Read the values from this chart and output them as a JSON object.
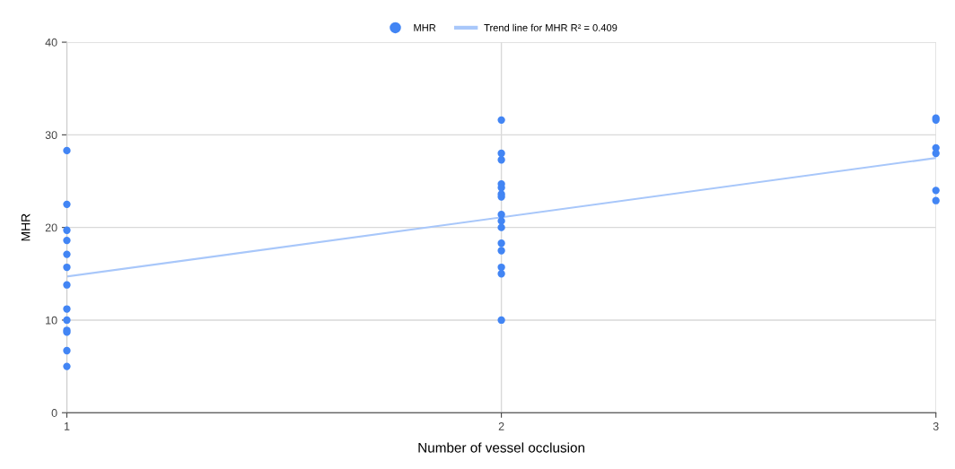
{
  "chart_data": {
    "type": "scatter",
    "xlabel": "Number of vessel occlusion",
    "ylabel": "MHR",
    "xlim": [
      1,
      3
    ],
    "xticks": [
      1,
      2,
      3
    ],
    "ylim": [
      0,
      40
    ],
    "yticks": [
      0,
      10,
      20,
      30,
      40
    ],
    "grid": true,
    "legend": "top",
    "series": [
      {
        "name": "MHR",
        "marker": "circle",
        "color": "#4285f4",
        "x": [
          1,
          1,
          1,
          1,
          1,
          1,
          1,
          1,
          1,
          1,
          1,
          1,
          1,
          2,
          2,
          2,
          2,
          2,
          2,
          2,
          2,
          2,
          2,
          2,
          2,
          2,
          2,
          2,
          3,
          3,
          3,
          3,
          3,
          3
        ],
        "values": [
          28.3,
          22.5,
          19.7,
          18.6,
          17.1,
          15.7,
          13.8,
          11.2,
          10.0,
          8.9,
          8.7,
          6.7,
          5.0,
          31.6,
          28.0,
          27.3,
          24.7,
          24.3,
          23.6,
          23.3,
          21.4,
          20.7,
          20.0,
          18.3,
          17.5,
          15.7,
          15.0,
          10.0,
          31.8,
          31.6,
          28.6,
          28.0,
          24.0,
          22.9
        ]
      },
      {
        "name": "Trend line for MHR R² = 0.409",
        "type": "line",
        "color": "#a8c7fa",
        "x": [
          1,
          3
        ],
        "values": [
          14.7,
          27.5
        ]
      }
    ]
  }
}
